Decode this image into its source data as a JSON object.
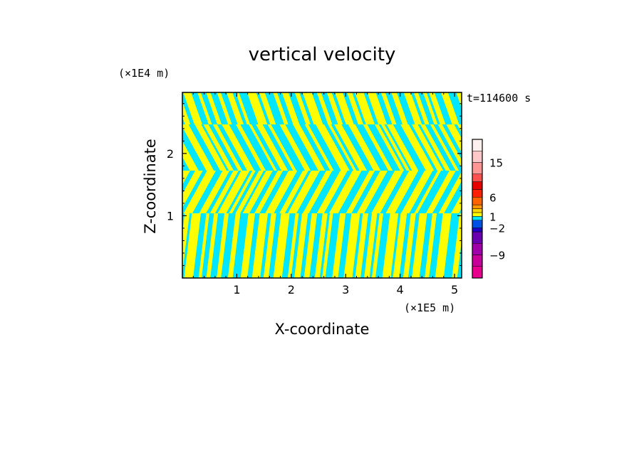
{
  "chart_data": {
    "type": "heatmap",
    "title": "vertical velocity",
    "xlabel": "X-coordinate",
    "ylabel": "Z-coordinate",
    "x_unit": "(×1E5 m)",
    "y_unit": "(×1E4 m)",
    "time_label": "t=114600 s",
    "xlim": [
      0,
      5.13
    ],
    "ylim": [
      0,
      2.98
    ],
    "x_ticks": [
      1,
      2,
      3,
      4,
      5
    ],
    "y_ticks": [
      1,
      2
    ],
    "colorbar": {
      "tick_labels": [
        "15",
        "6",
        "1",
        "−2",
        "−9"
      ],
      "colors": [
        "#e8008c",
        "#c80098",
        "#a000a8",
        "#6800b0",
        "#2000c8",
        "#0050e6",
        "#00e6ff",
        "#ffff00",
        "#ffd700",
        "#ff9600",
        "#ff6400",
        "#ff2000",
        "#e60000",
        "#ff5050",
        "#ff9696",
        "#ffc8c8",
        "#fff0f0"
      ],
      "bins": [
        -15,
        -12,
        -9,
        -6,
        -3,
        -2,
        0,
        1,
        2,
        3,
        4,
        6,
        8,
        10,
        12,
        15,
        18,
        21
      ]
    },
    "field_description": "alternating updraft (yellow) and downdraft (cyan) bands over the whole domain",
    "colors": {
      "positive": "#ffff00",
      "negative": "#00e6ff"
    }
  }
}
